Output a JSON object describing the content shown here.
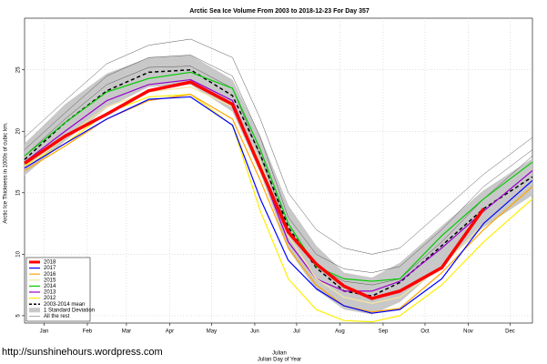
{
  "chart_data": {
    "type": "line",
    "title": "Arctic Sea Ice Volume From 2003 to 2018-12-23  For Day 357",
    "xlabel": "Julian",
    "xlabel2": "Julian Day of Year",
    "ylabel": "Arctic Ice Thickness in 1000s of cubic km.",
    "watermark": "http://sunshinehours.wordpress.com",
    "x": [
      1,
      30,
      60,
      90,
      120,
      150,
      170,
      190,
      210,
      230,
      250,
      270,
      300,
      330,
      365
    ],
    "xlim": [
      1,
      365
    ],
    "xticks": [
      {
        "value": 15,
        "label": "Jan"
      },
      {
        "value": 46,
        "label": "Feb"
      },
      {
        "value": 74,
        "label": "Mar"
      },
      {
        "value": 105,
        "label": "Apr"
      },
      {
        "value": 135,
        "label": "May"
      },
      {
        "value": 166,
        "label": "Jun"
      },
      {
        "value": 196,
        "label": "Jul"
      },
      {
        "value": 227,
        "label": "Aug"
      },
      {
        "value": 258,
        "label": "Sep"
      },
      {
        "value": 288,
        "label": "Oct"
      },
      {
        "value": 319,
        "label": "Nov"
      },
      {
        "value": 349,
        "label": "Dec"
      }
    ],
    "ylim": [
      4.4,
      29.2
    ],
    "yticks": [
      5,
      10,
      15,
      20,
      25
    ],
    "grid": true,
    "legend": "bottom-left",
    "series": [
      {
        "name": "2018",
        "color": "#ff0000",
        "width": 3.5,
        "values": [
          17.4,
          19.6,
          21.4,
          23.3,
          24.0,
          22.2,
          17.0,
          11.8,
          9.2,
          7.4,
          6.4,
          7.0,
          8.9,
          13.7,
          null
        ]
      },
      {
        "name": "2017",
        "color": "#0000ff",
        "width": 1.2,
        "values": [
          17.0,
          19.0,
          21.0,
          22.6,
          22.8,
          20.5,
          14.5,
          9.5,
          7.2,
          5.8,
          5.2,
          5.5,
          8.0,
          12.5,
          16.0
        ]
      },
      {
        "name": "2016",
        "color": "#ffa500",
        "width": 1.2,
        "values": [
          16.8,
          18.8,
          21.0,
          22.5,
          23.0,
          21.0,
          16.0,
          10.5,
          7.5,
          5.8,
          5.3,
          5.6,
          8.5,
          12.0,
          15.5
        ]
      },
      {
        "name": "2015",
        "color": "#f5e6a0",
        "width": 1.2,
        "values": [
          17.0,
          19.5,
          22.0,
          23.2,
          23.6,
          22.0,
          17.5,
          11.5,
          8.0,
          6.5,
          6.0,
          6.5,
          9.0,
          12.5,
          16.0
        ]
      },
      {
        "name": "2014",
        "color": "#00cc00",
        "width": 1.2,
        "values": [
          18.0,
          20.7,
          23.2,
          24.3,
          24.8,
          23.5,
          18.5,
          12.5,
          9.0,
          8.0,
          7.8,
          8.0,
          11.5,
          14.5,
          17.5
        ]
      },
      {
        "name": "2013",
        "color": "#9900cc",
        "width": 1.2,
        "values": [
          17.5,
          20.0,
          22.5,
          23.8,
          24.2,
          22.5,
          17.0,
          11.0,
          8.0,
          7.0,
          7.0,
          7.8,
          10.5,
          13.5,
          16.8
        ]
      },
      {
        "name": "2012",
        "color": "#ffee00",
        "width": 1.2,
        "values": [
          17.2,
          19.0,
          21.5,
          22.8,
          23.0,
          20.5,
          13.5,
          8.0,
          5.5,
          4.6,
          4.5,
          5.0,
          7.5,
          11.0,
          14.5
        ]
      },
      {
        "name": "2003-2014 mean",
        "color": "#000000",
        "width": 1.5,
        "dash": true,
        "values": [
          17.7,
          20.7,
          23.3,
          24.8,
          25.0,
          22.9,
          18.1,
          12.2,
          8.9,
          7.0,
          6.6,
          7.7,
          10.7,
          13.7,
          16.3
        ]
      },
      {
        "name": "1 Standard Deviation",
        "color": "#c8c8c8",
        "band": true,
        "values": [
          1.3,
          1.5,
          1.4,
          1.2,
          1.2,
          1.3,
          1.5,
          1.8,
          1.8,
          1.5,
          1.5,
          1.6,
          1.6,
          1.5,
          1.5
        ]
      },
      {
        "name": "All the rest",
        "color": "#555555",
        "width": 0.5,
        "multi": true,
        "values": [
          [
            19.5,
            22.5,
            25.5,
            27.0,
            27.5,
            26.0,
            21.0,
            15.0,
            12.0,
            10.5,
            10.0,
            10.5,
            13.5,
            16.5,
            19.5
          ],
          [
            18.5,
            21.5,
            24.5,
            26.0,
            26.2,
            24.5,
            19.5,
            13.0,
            10.0,
            8.8,
            8.5,
            9.0,
            12.0,
            15.5,
            18.5
          ],
          [
            18.0,
            21.0,
            23.8,
            25.2,
            25.3,
            23.5,
            18.0,
            12.0,
            9.0,
            7.8,
            7.5,
            8.0,
            11.0,
            14.5,
            18.0
          ]
        ]
      }
    ]
  }
}
